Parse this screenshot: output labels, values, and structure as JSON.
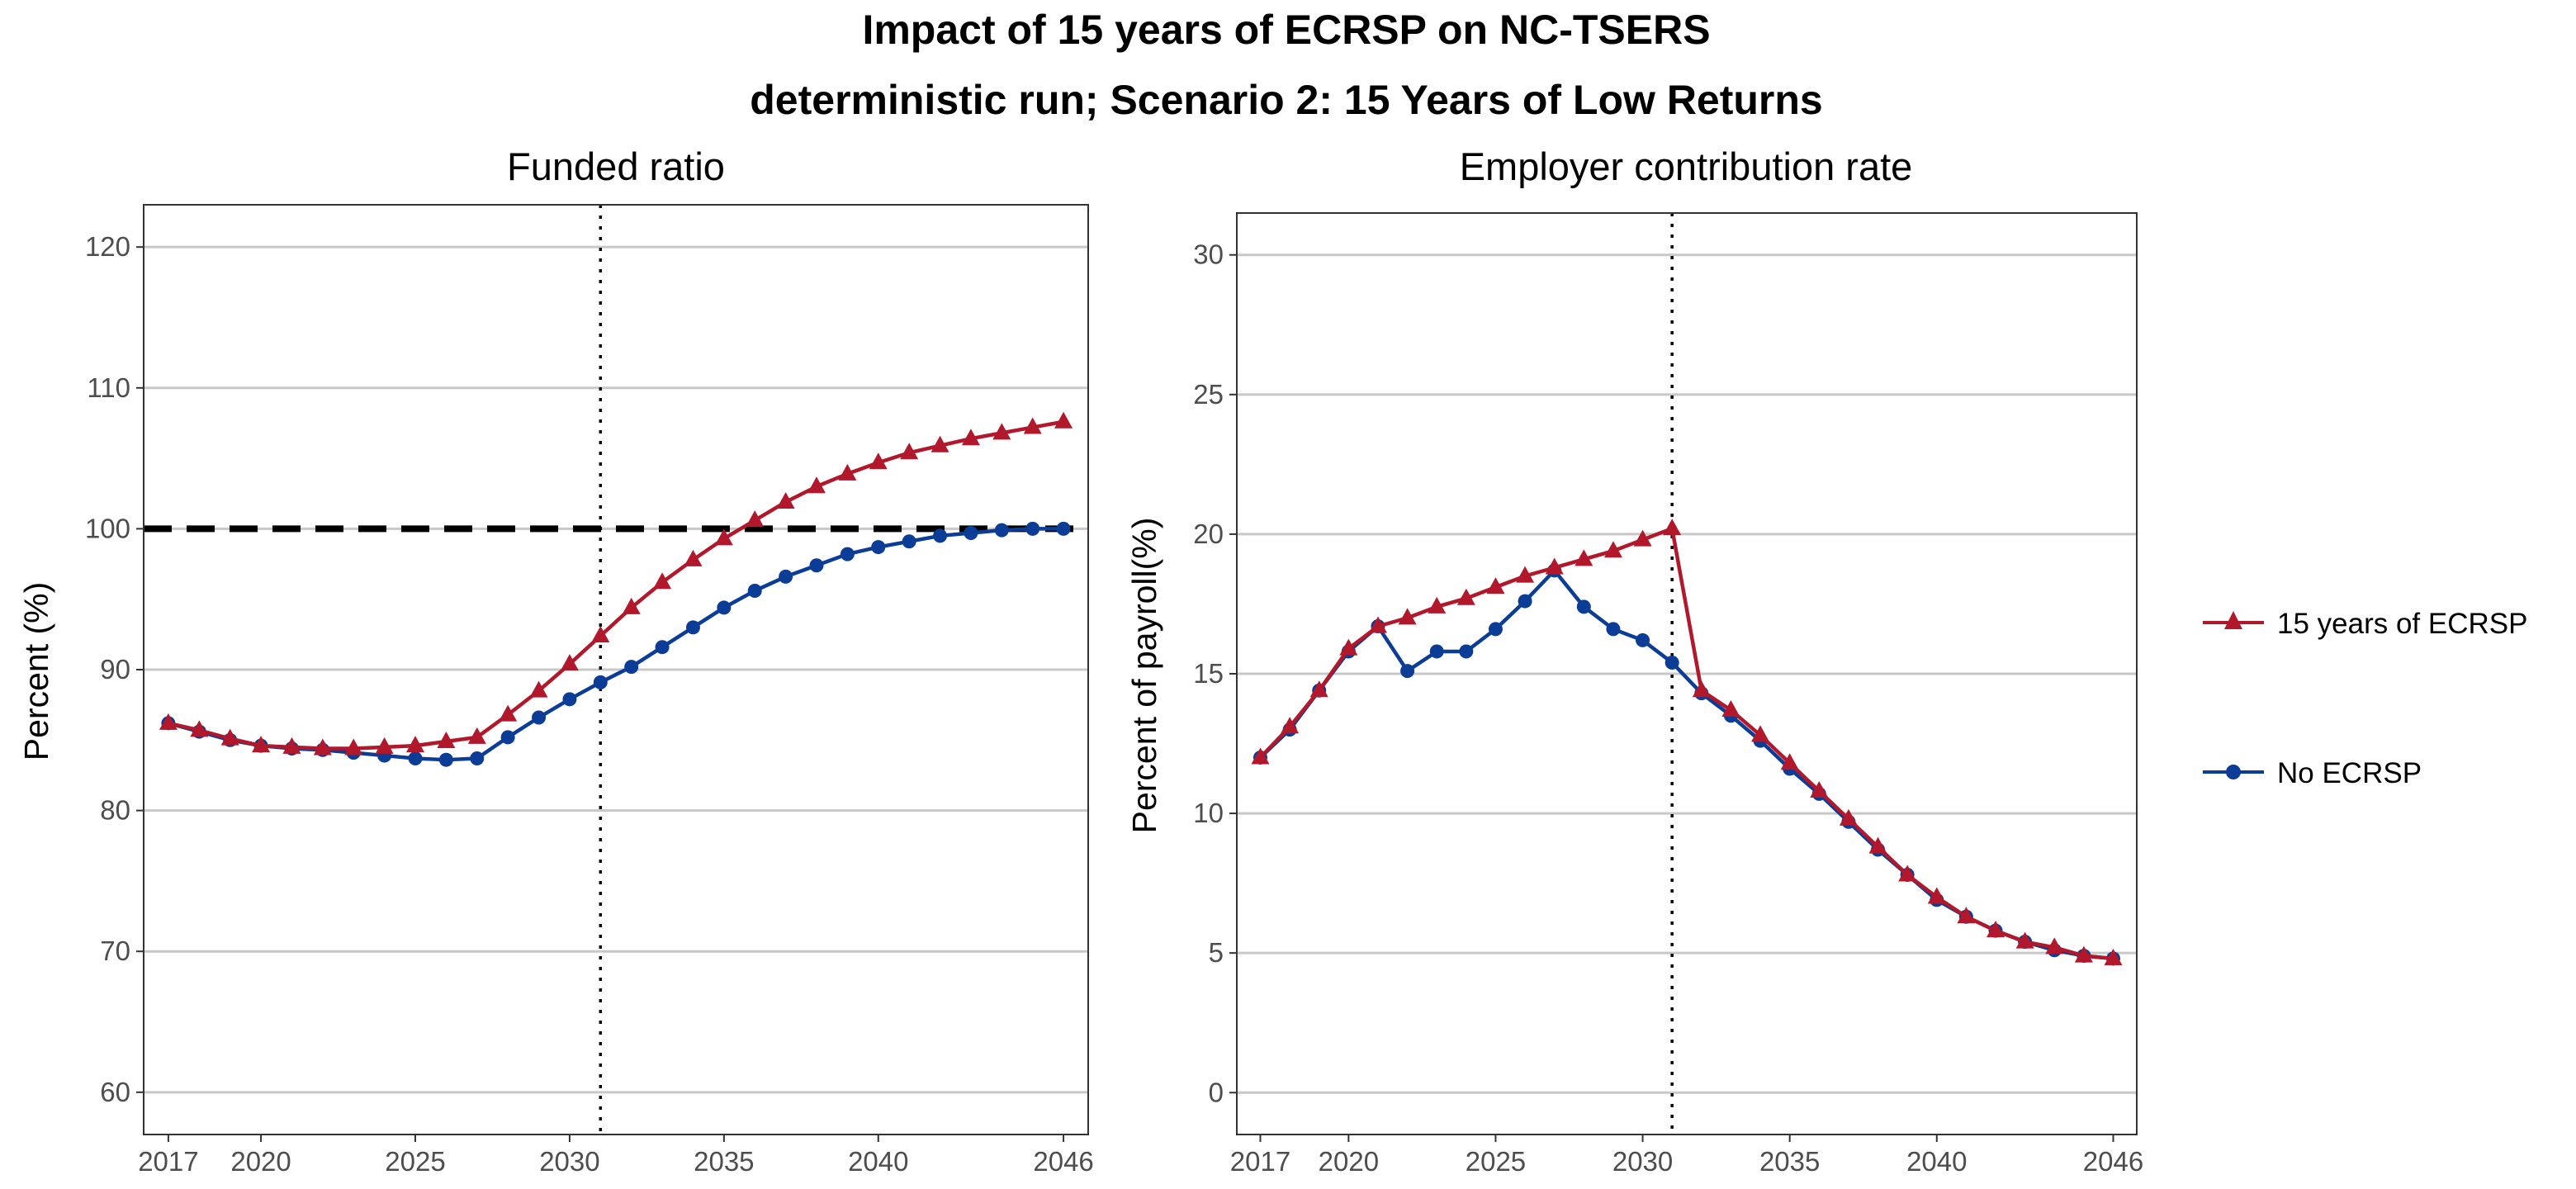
{
  "figure": {
    "title": "Impact of 15 years of ECRSP on NC-TSERS",
    "subtitle": "deterministic run; Scenario 2: 15 Years of Low Returns"
  },
  "legend": {
    "placement": "right",
    "entries": [
      {
        "label": "15 years of ECRSP",
        "color": "#B2182B",
        "marker": "triangle"
      },
      {
        "label": "No ECRSP",
        "color": "#0B3C96",
        "marker": "circle"
      }
    ]
  },
  "chart_data": [
    {
      "type": "line",
      "title": "Funded ratio",
      "xlabel": "",
      "ylabel": "Percent (%)",
      "xlim": [
        2016.2,
        2046.8
      ],
      "ylim": [
        57,
        123
      ],
      "xticks": [
        2017,
        2020,
        2025,
        2030,
        2035,
        2040,
        2046
      ],
      "yticks": [
        60,
        70,
        80,
        90,
        100,
        110,
        120
      ],
      "grid": "horizontal major",
      "reference_lines": [
        {
          "type": "horizontal",
          "value": 100,
          "style": "dashed"
        },
        {
          "type": "vertical",
          "value": 2031,
          "style": "dotted"
        }
      ],
      "x": [
        2017,
        2018,
        2019,
        2020,
        2021,
        2022,
        2023,
        2024,
        2025,
        2026,
        2027,
        2028,
        2029,
        2030,
        2031,
        2032,
        2033,
        2034,
        2035,
        2036,
        2037,
        2038,
        2039,
        2040,
        2041,
        2042,
        2043,
        2044,
        2045,
        2046
      ],
      "series": [
        {
          "name": "15 years of ECRSP",
          "color": "#B2182B",
          "marker": "triangle",
          "values": [
            86.2,
            85.7,
            85.1,
            84.6,
            84.5,
            84.4,
            84.4,
            84.5,
            84.6,
            84.9,
            85.2,
            86.8,
            88.5,
            90.4,
            92.4,
            94.4,
            96.2,
            97.8,
            99.3,
            100.6,
            101.9,
            103.0,
            103.9,
            104.7,
            105.4,
            105.9,
            106.4,
            106.8,
            107.2,
            107.6
          ]
        },
        {
          "name": "No ECRSP",
          "color": "#0B3C96",
          "marker": "circle",
          "values": [
            86.2,
            85.6,
            85.0,
            84.6,
            84.4,
            84.3,
            84.1,
            83.9,
            83.7,
            83.6,
            83.7,
            85.2,
            86.6,
            87.9,
            89.1,
            90.2,
            91.6,
            93.0,
            94.4,
            95.6,
            96.6,
            97.4,
            98.2,
            98.7,
            99.1,
            99.5,
            99.7,
            99.9,
            100.0,
            100.0
          ]
        }
      ]
    },
    {
      "type": "line",
      "title": "Employer contribution rate",
      "xlabel": "",
      "ylabel": "Percent of payroll(%)",
      "xlim": [
        2016.2,
        2046.8
      ],
      "ylim": [
        -1.5,
        31.5
      ],
      "xticks": [
        2017,
        2020,
        2025,
        2030,
        2035,
        2040,
        2046
      ],
      "yticks": [
        0,
        5,
        10,
        15,
        20,
        25,
        30
      ],
      "grid": "horizontal major",
      "reference_lines": [
        {
          "type": "vertical",
          "value": 2031,
          "style": "dotted"
        }
      ],
      "x": [
        2017,
        2018,
        2019,
        2020,
        2021,
        2022,
        2023,
        2024,
        2025,
        2026,
        2027,
        2028,
        2029,
        2030,
        2031,
        2032,
        2033,
        2034,
        2035,
        2036,
        2037,
        2038,
        2039,
        2040,
        2041,
        2042,
        2043,
        2044,
        2045,
        2046
      ],
      "series": [
        {
          "name": "15 years of ECRSP",
          "color": "#B2182B",
          "marker": "triangle",
          "values": [
            12.0,
            13.1,
            14.4,
            15.9,
            16.7,
            17.0,
            17.4,
            17.7,
            18.1,
            18.5,
            18.8,
            19.1,
            19.4,
            19.8,
            20.2,
            14.4,
            13.7,
            12.8,
            11.8,
            10.8,
            9.8,
            8.8,
            7.8,
            7.0,
            6.3,
            5.8,
            5.4,
            5.2,
            4.9,
            4.8
          ]
        },
        {
          "name": "No ECRSP",
          "color": "#0B3C96",
          "marker": "circle",
          "values": [
            12.0,
            13.0,
            14.4,
            15.8,
            16.7,
            15.1,
            15.8,
            15.8,
            16.6,
            17.6,
            18.7,
            17.4,
            16.6,
            16.2,
            15.4,
            14.3,
            13.5,
            12.6,
            11.6,
            10.7,
            9.7,
            8.7,
            7.8,
            6.9,
            6.3,
            5.8,
            5.4,
            5.1,
            4.9,
            4.8
          ]
        }
      ]
    }
  ]
}
